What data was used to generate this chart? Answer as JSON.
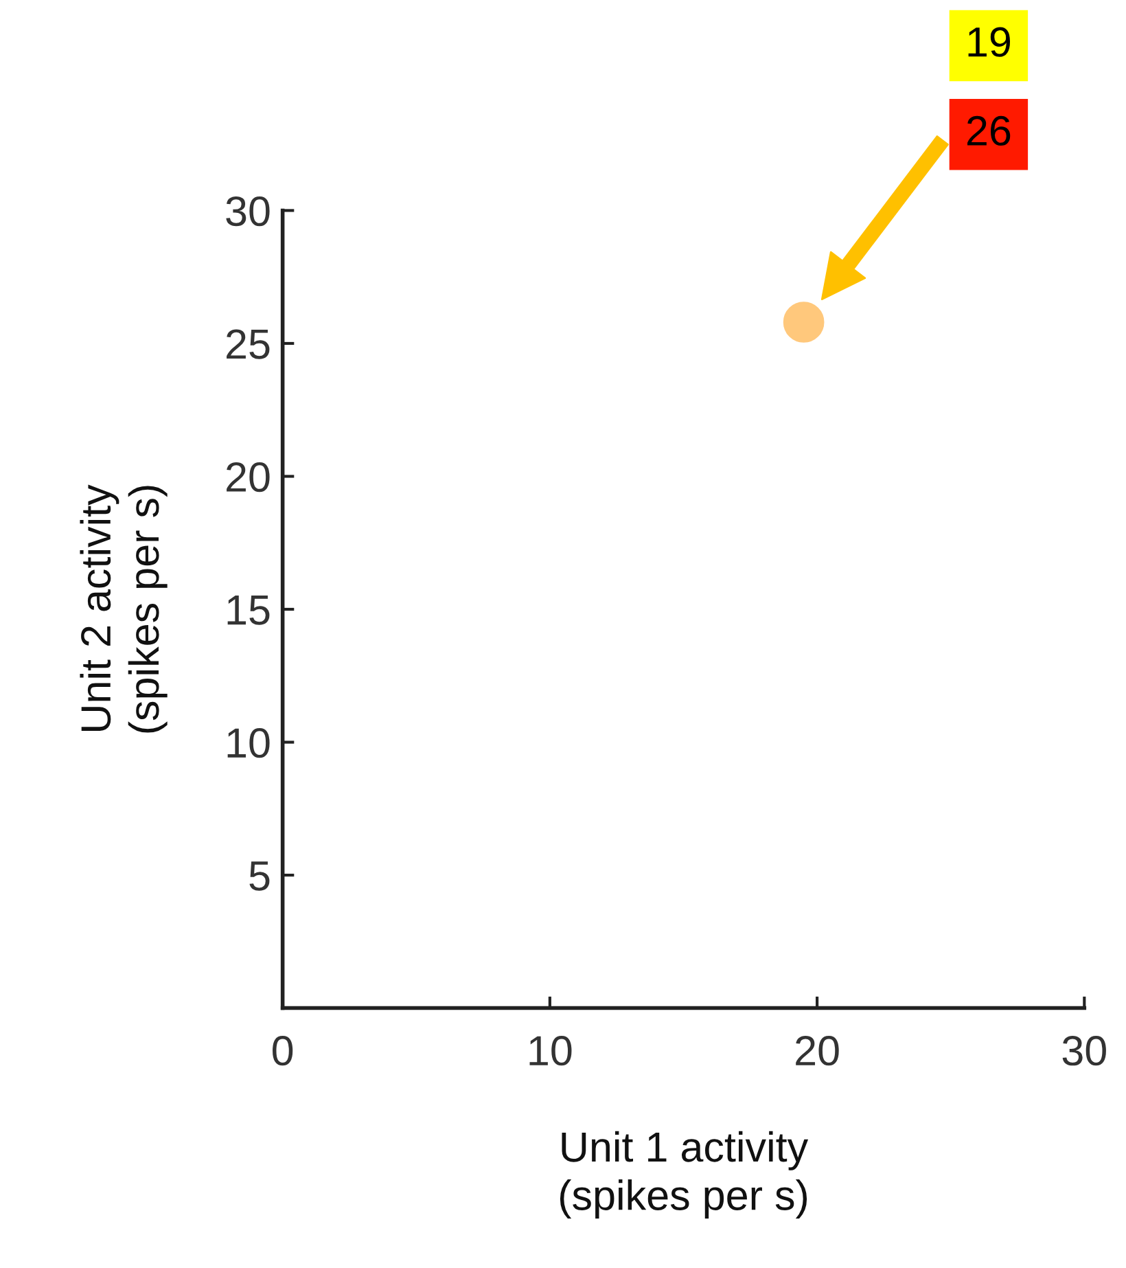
{
  "chart_data": {
    "type": "scatter",
    "xlabel": "Unit 1 activity\n(spikes per s)",
    "ylabel": "Unit 2 activity\n(spikes per s)",
    "x": [
      19.5
    ],
    "values": [
      25.8
    ],
    "color": "#ffc87c",
    "marker": "circle",
    "xlim": [
      0,
      30
    ],
    "ylim": [
      0,
      30
    ],
    "xticks": [
      0,
      10,
      20,
      30
    ],
    "yticks": [
      5,
      10,
      15,
      20,
      25,
      30
    ],
    "grid": false,
    "annotations": [
      "19",
      "26"
    ]
  }
}
